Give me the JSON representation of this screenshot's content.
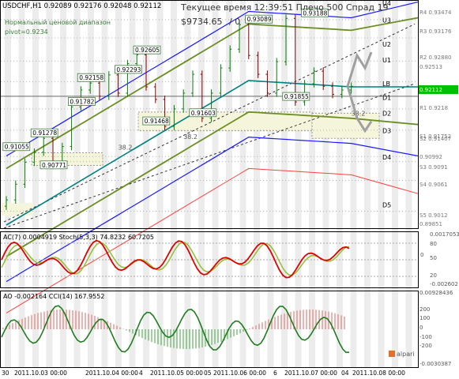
{
  "header": {
    "symbol_line": "USDCHF,H1  0.92089 0.92176 0.92048 0.92112",
    "note_range": "Нормальный ценовой диапазон",
    "note_pivot": "pivot=0.9234",
    "status": "Текущее время 12:39:51 Плечо 500 Спрад 19",
    "balance": "$9734.65",
    "zero": "/ 0"
  },
  "colors": {
    "price_up": "#008000",
    "price_down": "#800000",
    "band_blue": "#1a1aff",
    "band_olive": "#6b8e23",
    "ma_teal": "#008080",
    "red_line": "#ff4040",
    "zone_fill": "#f5f5dc",
    "current_price_bg": "#00c000",
    "stoch_red": "#e00000",
    "stoch_green": "#90c030",
    "cci_green": "#1e7d1e",
    "ao_red": "#e08080",
    "ao_green": "#60b060"
  },
  "chart_data": {
    "type": "line",
    "title": "USDCHF,H1",
    "ylim": [
      0.8985,
      0.9347
    ],
    "price_axis": [
      {
        "label": "R4",
        "value": "0.93474"
      },
      {
        "label": "R3",
        "value": "0.93176"
      },
      {
        "label": "R2",
        "value": "0.92880"
      },
      {
        "label": "",
        "value": "0.92513"
      },
      {
        "label": "",
        "value": "0.92112"
      },
      {
        "label": "R1",
        "value": "0.9218"
      },
      {
        "label": "S1",
        "value": "0.91752"
      },
      {
        "label": "S2",
        "value": "0.91407"
      },
      {
        "label": "",
        "value": "0.90992"
      },
      {
        "label": "S3",
        "value": "0.9091"
      },
      {
        "label": "S4",
        "value": "0.9061"
      },
      {
        "label": "S5",
        "value": "0.9012"
      },
      {
        "label": "",
        "value": "0.89851"
      }
    ],
    "current_price": "0.92112",
    "pivot_labels": [
      "U4",
      "U3",
      "U2",
      "U1",
      "LB",
      "D1",
      "D2",
      "D3",
      "D4",
      "D5"
    ],
    "price_callouts": [
      {
        "text": "0.93089",
        "x": 27,
        "y": 0.9309
      },
      {
        "text": "0.93188",
        "x": 33,
        "y": 0.9319
      },
      {
        "text": "0.92605",
        "x": 15,
        "y": 0.926
      },
      {
        "text": "0.92293",
        "x": 13,
        "y": 0.9229
      },
      {
        "text": "0.92158",
        "x": 9,
        "y": 0.9216
      },
      {
        "text": "0.91782",
        "x": 8,
        "y": 0.9178
      },
      {
        "text": "0.91278",
        "x": 4,
        "y": 0.9128
      },
      {
        "text": "0.91055",
        "x": 1,
        "y": 0.9106
      },
      {
        "text": "0.90771",
        "x": 5,
        "y": 0.9077
      },
      {
        "text": "0.91468",
        "x": 16,
        "y": 0.9147
      },
      {
        "text": "0.91603",
        "x": 21,
        "y": 0.916
      },
      {
        "text": "0.91855",
        "x": 31,
        "y": 0.9186
      }
    ],
    "fib_labels": [
      {
        "text": "38.2",
        "x": 12,
        "y": 0.911
      },
      {
        "text": "38.2",
        "x": 19,
        "y": 0.9127
      },
      {
        "text": "38.2",
        "x": 37,
        "y": 0.9164
      }
    ],
    "series": [
      {
        "name": "USDCHF,H1",
        "values": [
          0.903,
          0.9055,
          0.909,
          0.9106,
          0.9128,
          0.9085,
          0.9115,
          0.9178,
          0.9205,
          0.9216,
          0.9195,
          0.9229,
          0.92,
          0.9247,
          0.9261,
          0.921,
          0.919,
          0.9147,
          0.9175,
          0.92,
          0.923,
          0.916,
          0.92,
          0.924,
          0.927,
          0.9309,
          0.926,
          0.923,
          0.92,
          0.925,
          0.9319,
          0.9186,
          0.9215,
          0.9235,
          0.9211,
          0.9198,
          0.9205,
          0.9211
        ]
      }
    ],
    "x_ticks": [
      "30",
      "2011.10.03 00:00",
      "2011.10.04 00:00",
      "4",
      "2011.10.05 00:00",
      "05",
      "2011.10.06 00:00",
      "6",
      "2011.10.07 00:00",
      "04",
      "2011.10.08 00:00"
    ]
  },
  "stoch": {
    "label": "AC(7) 0.0004919  Stoch(5,3,3) 74.8232 60.7205",
    "axis": [
      {
        "value": "0.00170533",
        "top": true
      },
      {
        "value": "80"
      },
      {
        "value": "50"
      },
      {
        "value": "20"
      },
      {
        "value": "-0.002602"
      }
    ],
    "axis_extra": [
      "0"
    ]
  },
  "cci": {
    "label": "AO  -0.002164  CCI(14) 167.9552",
    "axis": [
      "0.00928436",
      "200",
      "100",
      "0",
      "-100",
      "-200",
      "-0.0030387"
    ],
    "logo": "alpari"
  }
}
